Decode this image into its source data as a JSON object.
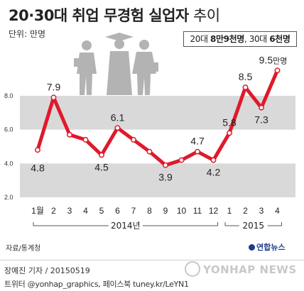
{
  "title": {
    "bold": "20·30대 취업 무경험 실업자",
    "plain": "추이"
  },
  "unit_label": "단위: 만명",
  "callout": {
    "part1": "20대 ",
    "bold1": "8만9천명",
    "part2": ", 30대 ",
    "bold2": "6천명"
  },
  "source": "자료/통계청",
  "credit": "장예진 기자 / 20150519",
  "social": "트위터 @yonhap_graphics, 페이스북 tuney.kr/LeYN1",
  "logo": "연합뉴스",
  "watermark": "YONHAP NEWS",
  "colors": {
    "line": "#e0192b",
    "band": "#d9d9d9",
    "marker_fill": "#ffffff"
  },
  "chart_data": {
    "type": "line",
    "title": "20·30대 취업 무경험 실업자 추이",
    "ylabel": "만명",
    "ylim": [
      2.0,
      9.5
    ],
    "yticks": [
      "8.0",
      "6.0",
      "4.0",
      "2.0"
    ],
    "ytick_values": [
      8.0,
      6.0,
      4.0,
      2.0
    ],
    "x": [
      "1월",
      "2",
      "3",
      "4",
      "5",
      "6",
      "7",
      "8",
      "9",
      "10",
      "11",
      "12",
      "1",
      "2",
      "3",
      "4"
    ],
    "values": [
      4.8,
      7.9,
      5.7,
      5.4,
      4.5,
      6.1,
      5.4,
      4.7,
      3.9,
      4.2,
      4.7,
      4.2,
      5.8,
      8.5,
      7.3,
      9.5
    ],
    "data_labels": [
      "4.8",
      "7.9",
      "",
      "",
      "4.5",
      "6.1",
      "",
      "",
      "3.9",
      "",
      "4.7",
      "4.2",
      "5.8",
      "8.5",
      "7.3",
      "9.5"
    ],
    "last_label_unit": "만명",
    "year_groups": [
      {
        "label": "2014년",
        "start_index": 0,
        "end_index": 11
      },
      {
        "label": "2015",
        "start_index": 12,
        "end_index": 15
      }
    ],
    "grid_bands": true,
    "legend": "none"
  }
}
